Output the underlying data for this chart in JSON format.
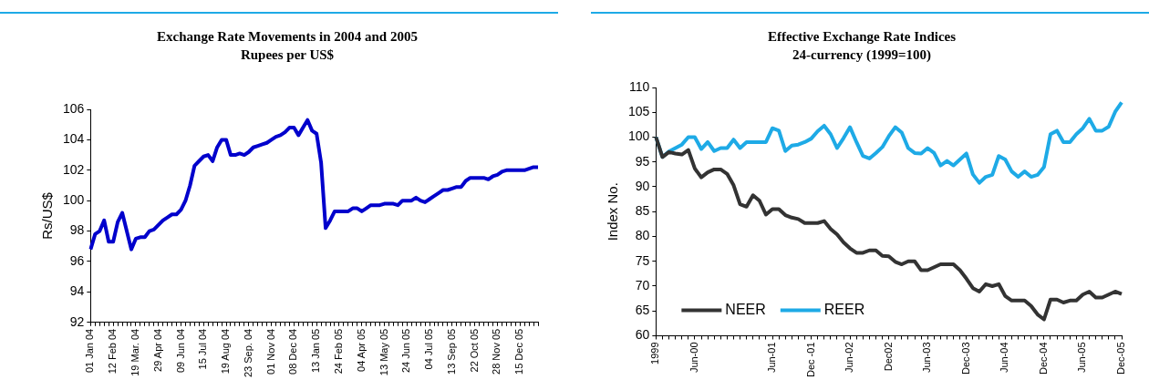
{
  "chart_data": [
    {
      "type": "line",
      "title": "Exchange Rate Movements in 2004 and 2005",
      "subtitle": "Rupees per US$",
      "ylabel": "Rs/US$",
      "categories": [
        "01 Jan 04",
        null,
        null,
        null,
        null,
        "12 Feb 04",
        null,
        null,
        null,
        null,
        "19 Mar. 04",
        null,
        null,
        null,
        null,
        "29 Apr 04",
        null,
        null,
        null,
        null,
        "09 Jun 04",
        null,
        null,
        null,
        null,
        "15 Jul 04",
        null,
        null,
        null,
        null,
        "19 Aug 04",
        null,
        null,
        null,
        null,
        "23 Sep. 04",
        null,
        null,
        null,
        null,
        "01 Nov 04",
        null,
        null,
        null,
        null,
        "08 Dec 04",
        null,
        null,
        null,
        null,
        "13 Jan 05",
        null,
        null,
        null,
        null,
        "24 Feb 05",
        null,
        null,
        null,
        null,
        "04 Apr 05",
        null,
        null,
        null,
        null,
        "13 May 05",
        null,
        null,
        null,
        null,
        "24 Jun 05",
        null,
        null,
        null,
        null,
        "04 Jul 05",
        null,
        null,
        null,
        null,
        "13 Sep 05",
        null,
        null,
        null,
        null,
        "22 Oct 05",
        null,
        null,
        null,
        null,
        "28 Nov 05",
        null,
        null,
        null,
        null,
        "15 Dec 05",
        null,
        null,
        null,
        null
      ],
      "series": [
        {
          "color": "#0000cc",
          "values": [
            96.8,
            97.8,
            98.0,
            98.7,
            97.3,
            97.3,
            98.6,
            99.2,
            98.0,
            96.8,
            97.5,
            97.6,
            97.6,
            98.0,
            98.1,
            98.4,
            98.7,
            98.9,
            99.1,
            99.1,
            99.4,
            100.0,
            101.0,
            102.3,
            102.6,
            102.9,
            103.0,
            102.6,
            103.5,
            104.0,
            104.0,
            103.0,
            103.0,
            103.1,
            103.0,
            103.2,
            103.5,
            103.6,
            103.7,
            103.8,
            104.0,
            104.2,
            104.3,
            104.5,
            104.8,
            104.8,
            104.3,
            104.8,
            105.3,
            104.6,
            104.4,
            102.5,
            98.2,
            98.7,
            99.3,
            99.3,
            99.3,
            99.3,
            99.5,
            99.5,
            99.3,
            99.5,
            99.7,
            99.7,
            99.7,
            99.8,
            99.8,
            99.8,
            99.7,
            100.0,
            100.0,
            100.0,
            100.2,
            100.0,
            99.9,
            100.1,
            100.3,
            100.5,
            100.7,
            100.7,
            100.8,
            100.9,
            100.9,
            101.3,
            101.5,
            101.5,
            101.5,
            101.5,
            101.4,
            101.6,
            101.7,
            101.9,
            102.0,
            102.0,
            102.0,
            102.0,
            102.0,
            102.1,
            102.2,
            102.2
          ]
        }
      ],
      "ylim": [
        92,
        106
      ],
      "yticks": [
        92,
        94,
        96,
        98,
        100,
        102,
        104,
        106
      ],
      "grid": false,
      "legend": false
    },
    {
      "type": "line",
      "title": "Effective Exchange Rate Indices",
      "subtitle": "24-currency (1999=100)",
      "ylabel": "Index No.",
      "categories": [
        "1999",
        null,
        null,
        null,
        null,
        null,
        "Jun-00",
        null,
        null,
        null,
        null,
        null,
        null,
        null,
        null,
        null,
        null,
        null,
        "Jun-01",
        null,
        null,
        null,
        null,
        null,
        "Dec -01",
        null,
        null,
        null,
        null,
        null,
        "Jun-02",
        null,
        null,
        null,
        null,
        null,
        "Dec02",
        null,
        null,
        null,
        null,
        null,
        "Jun-03",
        null,
        null,
        null,
        null,
        null,
        "Dec-03",
        null,
        null,
        null,
        null,
        null,
        "Jun-04",
        null,
        null,
        null,
        null,
        null,
        "Dec-04",
        null,
        null,
        null,
        null,
        null,
        "Jun-05",
        null,
        null,
        null,
        null,
        null,
        "Dec-05"
      ],
      "series": [
        {
          "name": "NEER",
          "color": "#333333",
          "values": [
            100,
            96,
            97,
            96.7,
            96.5,
            97.4,
            93.7,
            91.9,
            92.9,
            93.5,
            93.5,
            92.6,
            90.3,
            86.5,
            86,
            88.3,
            87.2,
            84.4,
            85.5,
            85.5,
            84.3,
            83.8,
            83.5,
            82.7,
            82.7,
            82.7,
            83.1,
            81.5,
            80.4,
            78.8,
            77.6,
            76.7,
            76.7,
            77.2,
            77.2,
            76.1,
            76,
            74.9,
            74.4,
            75,
            75,
            73.2,
            73.2,
            73.8,
            74.4,
            74.4,
            74.4,
            73.2,
            71.5,
            69.6,
            68.9,
            70.4,
            70,
            70.4,
            68,
            67.1,
            67.1,
            67.1,
            66,
            64.3,
            63.3,
            67.3,
            67.3,
            66.7,
            67.1,
            67.1,
            68.3,
            68.9,
            67.7,
            67.7,
            68.3,
            68.9,
            68.4
          ]
        },
        {
          "name": "REER",
          "color": "#1eaae6",
          "values": [
            100,
            96,
            97.1,
            97.8,
            98.5,
            100,
            100,
            97.6,
            99,
            97.2,
            97.8,
            97.8,
            99.5,
            97.8,
            99,
            99,
            99,
            99,
            101.8,
            101.3,
            97.2,
            98.3,
            98.5,
            99,
            99.7,
            101.2,
            102.3,
            100.6,
            97.8,
            99.8,
            102,
            99,
            96.2,
            95.7,
            96.8,
            98,
            100.2,
            102,
            100.9,
            97.8,
            96.8,
            96.7,
            97.8,
            96.8,
            94.3,
            95.2,
            94.3,
            95.5,
            96.7,
            92.5,
            90.8,
            92,
            92.4,
            96.2,
            95.5,
            93.1,
            92,
            93.1,
            92,
            92.4,
            94,
            100.6,
            101.3,
            99,
            99,
            100.6,
            101.8,
            103.7,
            101.3,
            101.3,
            102.1,
            105.1,
            107
          ]
        }
      ],
      "ylim": [
        60,
        110
      ],
      "yticks": [
        60,
        65,
        70,
        75,
        80,
        85,
        90,
        95,
        100,
        105,
        110
      ],
      "grid": false,
      "legend": "bottom left"
    }
  ]
}
